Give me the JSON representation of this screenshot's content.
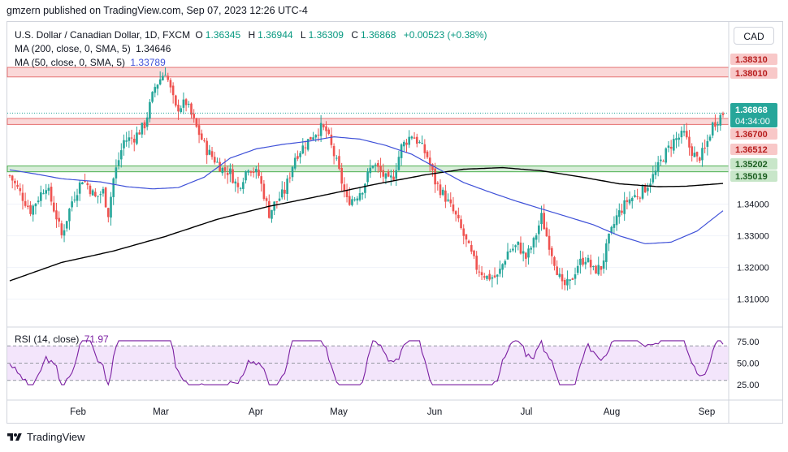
{
  "header": {
    "text": "gmzern published on TradingView.com, Sep 07, 2023 12:26 UTC-4"
  },
  "legend": {
    "symbol": "U.S. Dollar / Canadian Dollar, 1D, FXCM",
    "o_label": "O",
    "o": "1.36345",
    "h_label": "H",
    "h": "1.36944",
    "l_label": "L",
    "l": "1.36309",
    "c_label": "C",
    "c": "1.36868",
    "change": "+0.00523 (+0.38%)",
    "ma200_label": "MA (200, close, 0, SMA, 5)",
    "ma200_value": "1.34646",
    "ma50_label": "MA (50, close, 0, SMA, 5)",
    "ma50_value": "1.33789",
    "rsi_label": "RSI (14, close)",
    "rsi_value": "71.97"
  },
  "currency_button": "CAD",
  "footer": {
    "brand": "TradingView"
  },
  "colors": {
    "up": "#26a69a",
    "down": "#ef5350",
    "ma200": "#000000",
    "ma50": "#3f51d8",
    "rsi": "#7b1fa2",
    "resistance": "#f8c8c8",
    "support": "#c8e6c9",
    "rsi_band": "#f3e5fb"
  },
  "chart_data": {
    "type": "candlestick",
    "price_axis": {
      "ylim": [
        1.302,
        1.389
      ],
      "ticks": [
        "1.31000",
        "1.32000",
        "1.33000",
        "1.34000"
      ]
    },
    "time_axis": {
      "labels": [
        "Feb",
        "Mar",
        "Apr",
        "May",
        "Jun",
        "Jul",
        "Aug",
        "Sep"
      ]
    },
    "current_price": {
      "value": "1.36868",
      "countdown": "04:34:00"
    },
    "zones": [
      {
        "type": "resistance",
        "from": 1.3801,
        "to": 1.3831,
        "labels": [
          "1.38310",
          "1.38010"
        ]
      },
      {
        "type": "resistance",
        "from": 1.3651,
        "to": 1.367,
        "labels": [
          "1.36700",
          "1.36512"
        ]
      },
      {
        "type": "support",
        "from": 1.35019,
        "to": 1.35202,
        "labels": [
          "1.35202",
          "1.35019"
        ]
      }
    ],
    "close_anchors": [
      [
        0,
        1.349
      ],
      [
        8,
        1.338
      ],
      [
        14,
        1.346
      ],
      [
        18,
        1.336
      ],
      [
        20,
        1.33
      ],
      [
        24,
        1.341
      ],
      [
        28,
        1.348
      ],
      [
        30,
        1.346
      ],
      [
        33,
        1.342
      ],
      [
        36,
        1.344
      ],
      [
        38,
        1.337
      ],
      [
        40,
        1.348
      ],
      [
        44,
        1.36
      ],
      [
        48,
        1.361
      ],
      [
        52,
        1.365
      ],
      [
        56,
        1.377
      ],
      [
        60,
        1.382
      ],
      [
        64,
        1.37
      ],
      [
        68,
        1.372
      ],
      [
        72,
        1.364
      ],
      [
        76,
        1.357
      ],
      [
        80,
        1.353
      ],
      [
        82,
        1.351
      ],
      [
        85,
        1.35
      ],
      [
        88,
        1.345
      ],
      [
        92,
        1.352
      ],
      [
        96,
        1.349
      ],
      [
        100,
        1.337
      ],
      [
        102,
        1.34
      ],
      [
        106,
        1.344
      ],
      [
        110,
        1.355
      ],
      [
        114,
        1.359
      ],
      [
        117,
        1.362
      ],
      [
        120,
        1.364
      ],
      [
        122,
        1.363
      ],
      [
        126,
        1.353
      ],
      [
        130,
        1.341
      ],
      [
        133,
        1.342
      ],
      [
        136,
        1.345
      ],
      [
        140,
        1.353
      ],
      [
        143,
        1.35
      ],
      [
        146,
        1.347
      ],
      [
        148,
        1.349
      ],
      [
        151,
        1.358
      ],
      [
        155,
        1.362
      ],
      [
        158,
        1.359
      ],
      [
        161,
        1.355
      ],
      [
        164,
        1.347
      ],
      [
        168,
        1.342
      ],
      [
        172,
        1.336
      ],
      [
        176,
        1.328
      ],
      [
        180,
        1.32
      ],
      [
        184,
        1.317
      ],
      [
        188,
        1.317
      ],
      [
        192,
        1.325
      ],
      [
        196,
        1.327
      ],
      [
        199,
        1.323
      ],
      [
        202,
        1.328
      ],
      [
        205,
        1.336
      ],
      [
        207,
        1.33
      ],
      [
        210,
        1.322
      ],
      [
        213,
        1.314
      ],
      [
        216,
        1.315
      ],
      [
        219,
        1.321
      ],
      [
        222,
        1.323
      ],
      [
        225,
        1.319
      ],
      [
        228,
        1.32
      ],
      [
        231,
        1.329
      ],
      [
        234,
        1.336
      ],
      [
        238,
        1.341
      ],
      [
        242,
        1.343
      ],
      [
        245,
        1.345
      ],
      [
        249,
        1.35
      ],
      [
        252,
        1.355
      ],
      [
        256,
        1.36
      ],
      [
        260,
        1.362
      ],
      [
        262,
        1.358
      ],
      [
        265,
        1.354
      ],
      [
        268,
        1.357
      ],
      [
        271,
        1.365
      ],
      [
        275,
        1.3687
      ]
    ],
    "ma200_anchors": [
      [
        0,
        1.3158
      ],
      [
        20,
        1.3216
      ],
      [
        40,
        1.3252
      ],
      [
        60,
        1.3298
      ],
      [
        80,
        1.3352
      ],
      [
        100,
        1.3393
      ],
      [
        120,
        1.3426
      ],
      [
        140,
        1.3461
      ],
      [
        160,
        1.3492
      ],
      [
        175,
        1.351
      ],
      [
        190,
        1.3515
      ],
      [
        205,
        1.3505
      ],
      [
        220,
        1.3486
      ],
      [
        235,
        1.3464
      ],
      [
        250,
        1.3455
      ],
      [
        260,
        1.3456
      ],
      [
        275,
        1.3465
      ]
    ],
    "ma50_anchors": [
      [
        0,
        1.3508
      ],
      [
        10,
        1.3495
      ],
      [
        20,
        1.348
      ],
      [
        35,
        1.347
      ],
      [
        45,
        1.3455
      ],
      [
        55,
        1.3448
      ],
      [
        65,
        1.3452
      ],
      [
        75,
        1.3485
      ],
      [
        85,
        1.3545
      ],
      [
        95,
        1.3574
      ],
      [
        105,
        1.3588
      ],
      [
        115,
        1.3598
      ],
      [
        125,
        1.3612
      ],
      [
        135,
        1.3605
      ],
      [
        145,
        1.3585
      ],
      [
        155,
        1.3557
      ],
      [
        165,
        1.3512
      ],
      [
        175,
        1.3468
      ],
      [
        185,
        1.3438
      ],
      [
        195,
        1.341
      ],
      [
        205,
        1.3385
      ],
      [
        215,
        1.336
      ],
      [
        225,
        1.3335
      ],
      [
        235,
        1.33
      ],
      [
        245,
        1.3275
      ],
      [
        255,
        1.328
      ],
      [
        265,
        1.3315
      ],
      [
        275,
        1.3379
      ]
    ],
    "rsi": {
      "ylim": [
        10,
        90
      ],
      "levels": [
        30,
        70
      ],
      "ticks": [
        "75.00",
        "50.00",
        "25.00"
      ],
      "latest": 71.97
    }
  }
}
